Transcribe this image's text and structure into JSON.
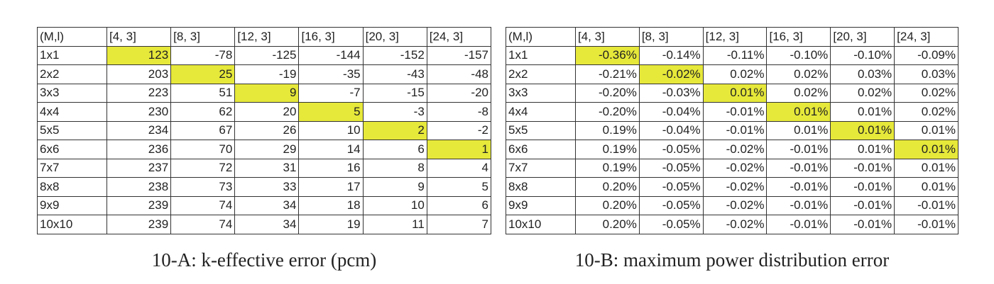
{
  "tables": [
    {
      "header": [
        "(M,l)",
        "[4, 3]",
        "[8, 3]",
        "[12, 3]",
        "[16, 3]",
        "[20, 3]",
        "[24, 3]"
      ],
      "rows": [
        [
          "1x1",
          "123",
          "-78",
          "-125",
          "-144",
          "-152",
          "-157"
        ],
        [
          "2x2",
          "203",
          "25",
          "-19",
          "-35",
          "-43",
          "-48"
        ],
        [
          "3x3",
          "223",
          "51",
          "9",
          "-7",
          "-15",
          "-20"
        ],
        [
          "4x4",
          "230",
          "62",
          "20",
          "5",
          "-3",
          "-8"
        ],
        [
          "5x5",
          "234",
          "67",
          "26",
          "10",
          "2",
          "-2"
        ],
        [
          "6x6",
          "236",
          "70",
          "29",
          "14",
          "6",
          "1"
        ],
        [
          "7x7",
          "237",
          "72",
          "31",
          "16",
          "8",
          "4"
        ],
        [
          "8x8",
          "238",
          "73",
          "33",
          "17",
          "9",
          "5"
        ],
        [
          "9x9",
          "239",
          "74",
          "34",
          "18",
          "10",
          "6"
        ],
        [
          "10x10",
          "239",
          "74",
          "34",
          "19",
          "11",
          "7"
        ]
      ],
      "caption": "10-A: k-effective error (pcm)"
    },
    {
      "header": [
        "(M,l)",
        "[4, 3]",
        "[8, 3]",
        "[12, 3]",
        "[16, 3]",
        "[20, 3]",
        "[24, 3]"
      ],
      "rows": [
        [
          "1x1",
          "-0.36%",
          "-0.14%",
          "-0.11%",
          "-0.10%",
          "-0.10%",
          "-0.09%"
        ],
        [
          "2x2",
          "-0.21%",
          "-0.02%",
          "0.02%",
          "0.02%",
          "0.03%",
          "0.03%"
        ],
        [
          "3x3",
          "-0.20%",
          "-0.03%",
          "0.01%",
          "0.02%",
          "0.02%",
          "0.02%"
        ],
        [
          "4x4",
          "-0.20%",
          "-0.04%",
          "-0.01%",
          "0.01%",
          "0.01%",
          "0.02%"
        ],
        [
          "5x5",
          "0.19%",
          "-0.04%",
          "-0.01%",
          "0.01%",
          "0.01%",
          "0.01%"
        ],
        [
          "6x6",
          "0.19%",
          "-0.05%",
          "-0.02%",
          "-0.01%",
          "0.01%",
          "0.01%"
        ],
        [
          "7x7",
          "0.19%",
          "-0.05%",
          "-0.02%",
          "-0.01%",
          "-0.01%",
          "0.01%"
        ],
        [
          "8x8",
          "0.20%",
          "-0.05%",
          "-0.02%",
          "-0.01%",
          "-0.01%",
          "0.01%"
        ],
        [
          "9x9",
          "0.20%",
          "-0.05%",
          "-0.02%",
          "-0.01%",
          "-0.01%",
          "-0.01%"
        ],
        [
          "10x10",
          "0.20%",
          "-0.05%",
          "-0.02%",
          "-0.01%",
          "-0.01%",
          "-0.01%"
        ]
      ],
      "caption": "10-B: maximum power distribution error"
    }
  ]
}
